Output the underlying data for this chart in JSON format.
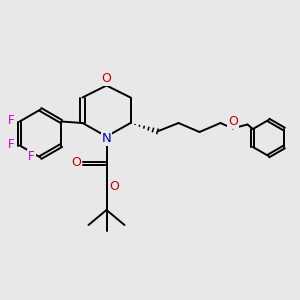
{
  "bg_color": "#e8e8e8",
  "bond_color": "#000000",
  "N_color": "#0000cc",
  "O_color": "#cc0000",
  "F_color": "#cc00cc",
  "figsize": [
    3.0,
    3.0
  ],
  "dpi": 100,
  "xlim": [
    0,
    10
  ],
  "ylim": [
    0,
    10
  ]
}
